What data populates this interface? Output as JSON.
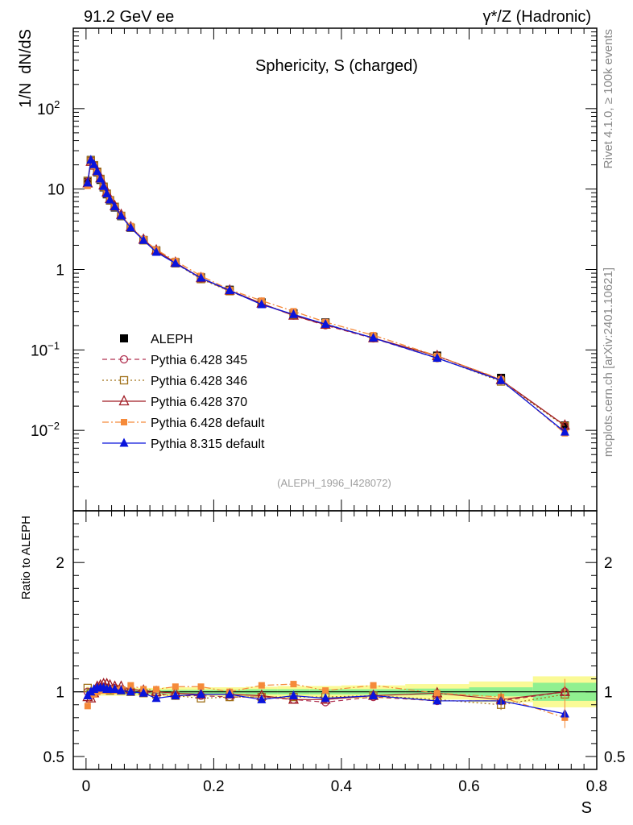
{
  "header": {
    "left": "91.2 GeV ee",
    "right": "γ*/Z (Hadronic)",
    "side_top": "Rivet 4.1.0, ≥ 100k events",
    "side_bottom": "mcplots.cern.ch [arXiv:2401.10621]"
  },
  "colors": {
    "ALEPH": "#000000",
    "p345": "#b03050",
    "p346": "#a07018",
    "p370": "#a01c24",
    "pdef": "#f58a3a",
    "p8": "#0a14dc",
    "band_inner": "#90f090",
    "band_outer": "#fafa96"
  },
  "chart_data": {
    "type": "line",
    "title": "Sphericity, S (charged)",
    "xlabel": "S",
    "ylabel": "1/N  dN/dS",
    "ratio_ylabel": "Ratio to ALEPH",
    "analysis_tag": "(ALEPH_1996_I428072)",
    "xlim": [
      -0.02,
      0.8
    ],
    "ylim": [
      0.001,
      1000
    ],
    "ratio_ylim": [
      0.4,
      2.4
    ],
    "main_yticks": [
      {
        "value": 0.01,
        "label": "10",
        "exp": "−2"
      },
      {
        "value": 0.1,
        "label": "10",
        "exp": "−1"
      },
      {
        "value": 1,
        "label": "1",
        "exp": ""
      },
      {
        "value": 10,
        "label": "10",
        "exp": ""
      },
      {
        "value": 100,
        "label": "10",
        "exp": "2"
      }
    ],
    "ratio_yticks": [
      {
        "value": 0.5,
        "label": "0.5"
      },
      {
        "value": 1,
        "label": "1"
      },
      {
        "value": 2,
        "label": "2"
      }
    ],
    "xticks": [
      {
        "value": 0,
        "label": "0"
      },
      {
        "value": 0.2,
        "label": "0.2"
      },
      {
        "value": 0.4,
        "label": "0.4"
      },
      {
        "value": 0.6,
        "label": "0.6"
      },
      {
        "value": 0.8,
        "label": "0.8"
      }
    ],
    "x": [
      0.0025,
      0.0075,
      0.0125,
      0.0175,
      0.0225,
      0.0275,
      0.0325,
      0.0375,
      0.045,
      0.055,
      0.07,
      0.09,
      0.11,
      0.14,
      0.18,
      0.225,
      0.275,
      0.325,
      0.375,
      0.45,
      0.55,
      0.65,
      0.75
    ],
    "data": [
      12.3,
      23.0,
      19.8,
      16.1,
      13.0,
      10.5,
      8.6,
      7.2,
      5.9,
      4.6,
      3.3,
      2.33,
      1.73,
      1.23,
      0.8,
      0.56,
      0.39,
      0.285,
      0.22,
      0.145,
      0.085,
      0.045,
      0.0115
    ],
    "band_edges": [
      0.0,
      0.005,
      0.01,
      0.015,
      0.02,
      0.025,
      0.03,
      0.035,
      0.04,
      0.05,
      0.06,
      0.08,
      0.1,
      0.12,
      0.16,
      0.2,
      0.25,
      0.3,
      0.35,
      0.4,
      0.5,
      0.6,
      0.7,
      0.8
    ],
    "band_stat": [
      0.02,
      0.015,
      0.015,
      0.015,
      0.015,
      0.015,
      0.015,
      0.015,
      0.015,
      0.015,
      0.015,
      0.015,
      0.015,
      0.015,
      0.015,
      0.015,
      0.02,
      0.02,
      0.02,
      0.02,
      0.025,
      0.035,
      0.07
    ],
    "band_total": [
      0.04,
      0.03,
      0.03,
      0.03,
      0.03,
      0.03,
      0.03,
      0.03,
      0.03,
      0.03,
      0.03,
      0.03,
      0.03,
      0.035,
      0.035,
      0.035,
      0.04,
      0.045,
      0.045,
      0.05,
      0.06,
      0.08,
      0.12
    ],
    "series": [
      {
        "name": "Pythia 6.428 345",
        "key": "p345",
        "marker": "circle-open",
        "dash": "6,4",
        "ratio": [
          1.0,
          0.97,
          1.0,
          1.02,
          1.04,
          1.04,
          1.03,
          1.02,
          1.03,
          1.02,
          1.01,
          1.0,
          0.99,
          0.97,
          0.97,
          0.96,
          0.96,
          0.94,
          0.92,
          0.96,
          0.93,
          0.93,
          1.0
        ]
      },
      {
        "name": "Pythia 6.428 346",
        "key": "p346",
        "marker": "square-open",
        "dash": "2,3",
        "ratio": [
          1.03,
          0.99,
          1.0,
          1.02,
          1.03,
          1.02,
          1.02,
          1.01,
          1.02,
          1.01,
          1.0,
          0.99,
          0.98,
          0.97,
          0.95,
          0.96,
          0.96,
          0.96,
          0.96,
          0.97,
          0.94,
          0.9,
          0.98
        ]
      },
      {
        "name": "Pythia 6.428 370",
        "key": "p370",
        "marker": "triangle-open",
        "dash": "",
        "ratio": [
          0.96,
          0.95,
          0.99,
          1.04,
          1.05,
          1.06,
          1.06,
          1.05,
          1.04,
          1.04,
          1.02,
          1.01,
          1.0,
          0.99,
          0.98,
          0.98,
          0.97,
          0.94,
          0.94,
          0.97,
          0.99,
          0.94,
          1.0
        ]
      },
      {
        "name": "Pythia 6.428 default",
        "key": "pdef",
        "marker": "square-filled",
        "dash": "8,3,2,3",
        "ratio": [
          0.89,
          0.98,
          0.98,
          1.0,
          1.01,
          1.01,
          1.01,
          1.02,
          1.01,
          1.02,
          1.05,
          1.02,
          1.02,
          1.04,
          1.04,
          1.0,
          1.05,
          1.06,
          1.01,
          1.05,
          0.99,
          0.96,
          0.8
        ]
      },
      {
        "name": "Pythia 8.315 default",
        "key": "p8",
        "marker": "triangle-filled",
        "dash": "",
        "ratio": [
          0.97,
          1.0,
          1.02,
          1.03,
          1.03,
          1.03,
          1.02,
          1.02,
          1.02,
          1.01,
          1.0,
          0.99,
          0.95,
          0.97,
          0.98,
          0.98,
          0.94,
          0.97,
          0.95,
          0.97,
          0.93,
          0.93,
          0.83
        ]
      }
    ],
    "legend_data_label": "ALEPH"
  }
}
